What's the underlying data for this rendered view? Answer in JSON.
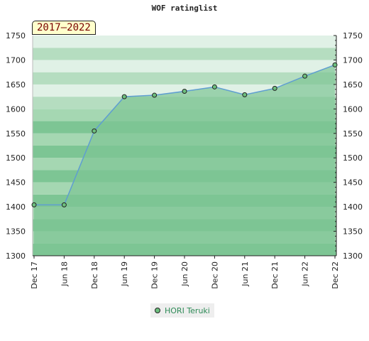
{
  "chart_title": "WOF ratinglist",
  "period_label": "2017–2022",
  "legend_label": "HORI Teruki",
  "colors": {
    "band_dark": "#7dc594",
    "band_light": "#a5d7b2",
    "band_top_dark": "#b5ddc0",
    "band_top_light": "#e0f1e6",
    "area_fill": "#7dc594",
    "line": "#5f9ed1",
    "marker": "#6dbf7e"
  },
  "chart_data": {
    "type": "area",
    "title": "WOF ratinglist",
    "xlabel": "",
    "ylabel": "",
    "ylim": [
      1300,
      1750
    ],
    "yticks": [
      1300,
      1350,
      1400,
      1450,
      1500,
      1550,
      1600,
      1650,
      1700,
      1750
    ],
    "ytick_labels": [
      "1300",
      "1350",
      "1400",
      "1450",
      "1500",
      "1550",
      "1600",
      "1650",
      "1700",
      "1750"
    ],
    "categories": [
      "Dec 17",
      "Jun 18",
      "Dec 18",
      "Jun 19",
      "Dec 19",
      "Jun 20",
      "Dec 20",
      "Jun 21",
      "Dec 21",
      "Jun 22",
      "Dec 22"
    ],
    "series": [
      {
        "name": "HORI Teruki",
        "values": [
          1404,
          1404,
          1555,
          1625,
          1628,
          1636,
          1645,
          1629,
          1642,
          1667,
          1690
        ]
      }
    ],
    "grid": true,
    "legend_position": "bottom-center"
  }
}
